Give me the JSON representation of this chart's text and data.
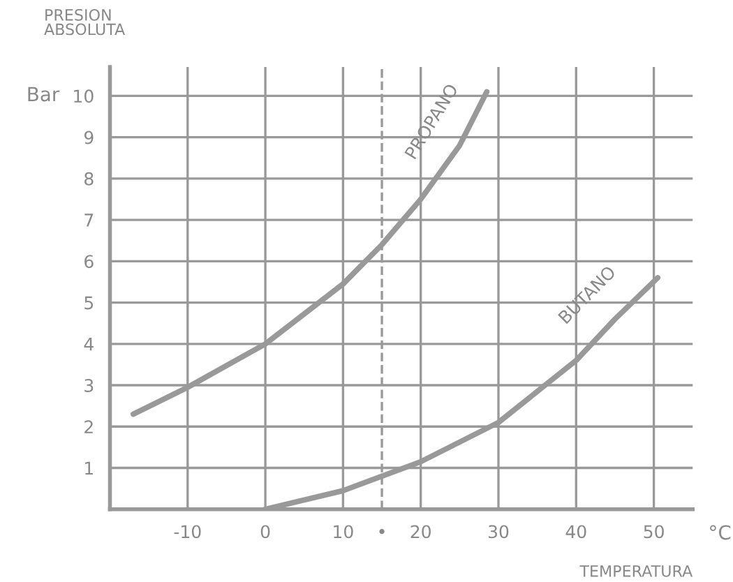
{
  "chart_data": {
    "type": "line",
    "ylabel": "PRESION\nABSOLUTA",
    "xlabel": "TEMPERATURA",
    "annotations": [
      "Bar",
      "°C"
    ],
    "series": [
      {
        "name": "PROPANO",
        "color": "#999999",
        "x": [
          -17,
          -10,
          0,
          10,
          15,
          20,
          25,
          28.5
        ],
        "values": [
          2.3,
          2.95,
          4,
          5.45,
          6.4,
          7.5,
          8.8,
          10.1
        ]
      },
      {
        "name": "BUTANO",
        "color": "#999999",
        "x": [
          0,
          10,
          15,
          20,
          30,
          36,
          40,
          45,
          50.5
        ],
        "values": [
          0,
          0.45,
          0.8,
          1.15,
          2.1,
          3.0,
          3.6,
          4.6,
          5.6
        ]
      }
    ],
    "xlim": [
      -20,
      55
    ],
    "ylim": [
      0,
      10.7
    ],
    "xticks": [
      -10,
      0,
      10,
      {
        "value": 15,
        "label": "•"
      },
      20,
      30,
      40,
      50
    ],
    "yticks": [
      1,
      2,
      3,
      4,
      5,
      6,
      7,
      8,
      9,
      10
    ],
    "ref_lines": [
      {
        "axis": "x",
        "value": 15,
        "label": null,
        "color": "#999999",
        "line_style": "dashed"
      }
    ],
    "grid": true,
    "legend": false,
    "marker": "none",
    "line_style": "solid"
  }
}
